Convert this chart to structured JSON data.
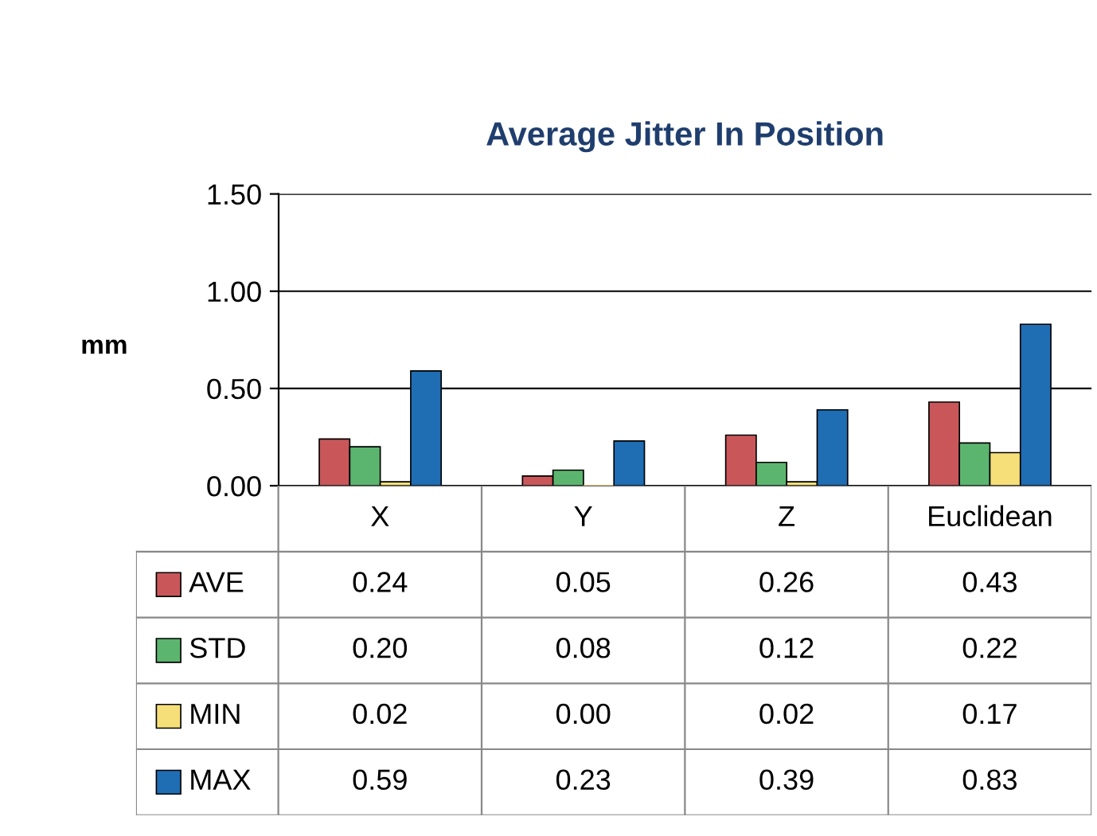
{
  "chart_data": {
    "type": "bar",
    "title": "Average Jitter In Position",
    "ylabel": "mm",
    "categories": [
      "X",
      "Y",
      "Z",
      "Euclidean"
    ],
    "series": [
      {
        "name": "AVE",
        "color": "#c9575a",
        "values": [
          0.24,
          0.05,
          0.26,
          0.43
        ],
        "value_labels": [
          "0.24",
          "0.05",
          "0.26",
          "0.43"
        ]
      },
      {
        "name": "STD",
        "color": "#5cb56e",
        "values": [
          0.2,
          0.08,
          0.12,
          0.22
        ],
        "value_labels": [
          "0.20",
          "0.08",
          "0.12",
          "0.22"
        ]
      },
      {
        "name": "MIN",
        "color": "#f6df78",
        "values": [
          0.02,
          0.0,
          0.02,
          0.17
        ],
        "value_labels": [
          "0.02",
          "0.00",
          "0.02",
          "0.17"
        ]
      },
      {
        "name": "MAX",
        "color": "#1f6db3",
        "values": [
          0.59,
          0.23,
          0.39,
          0.83
        ],
        "value_labels": [
          "0.59",
          "0.23",
          "0.39",
          "0.83"
        ]
      }
    ],
    "ylim": [
      0,
      1.5
    ],
    "yticks": [
      {
        "value": 0,
        "label": "0.00"
      },
      {
        "value": 0.5,
        "label": "0.50"
      },
      {
        "value": 1.0,
        "label": "1.00"
      },
      {
        "value": 1.5,
        "label": "1.50"
      }
    ],
    "grid": "y",
    "legend": "bottom left"
  }
}
